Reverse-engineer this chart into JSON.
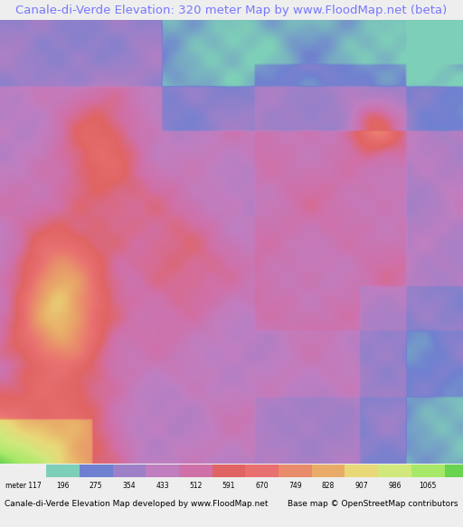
{
  "title": "Canale-di-Verde Elevation: 320 meter Map by www.FloodMap.net (beta)",
  "title_color": "#7777ff",
  "title_fontsize": 9.5,
  "bg_color": "#eeeeee",
  "colorbar_labels": [
    "meter 117",
    "196",
    "275",
    "354",
    "433",
    "512",
    "591",
    "670",
    "749",
    "828",
    "907",
    "986",
    "1065"
  ],
  "colorbar_colors": [
    "#7ecfb8",
    "#7080d0",
    "#9e80c8",
    "#c07ec0",
    "#d070a8",
    "#e06464",
    "#e87070",
    "#e88c6c",
    "#e8ac68",
    "#e8d878",
    "#d0e87c",
    "#a8e868",
    "#68d450"
  ],
  "footer_left": "Canale-di-Verde Elevation Map developed by www.FloodMap.net",
  "footer_right": "Base map © OpenStreetMap contributors",
  "footer_fontsize": 6.5
}
